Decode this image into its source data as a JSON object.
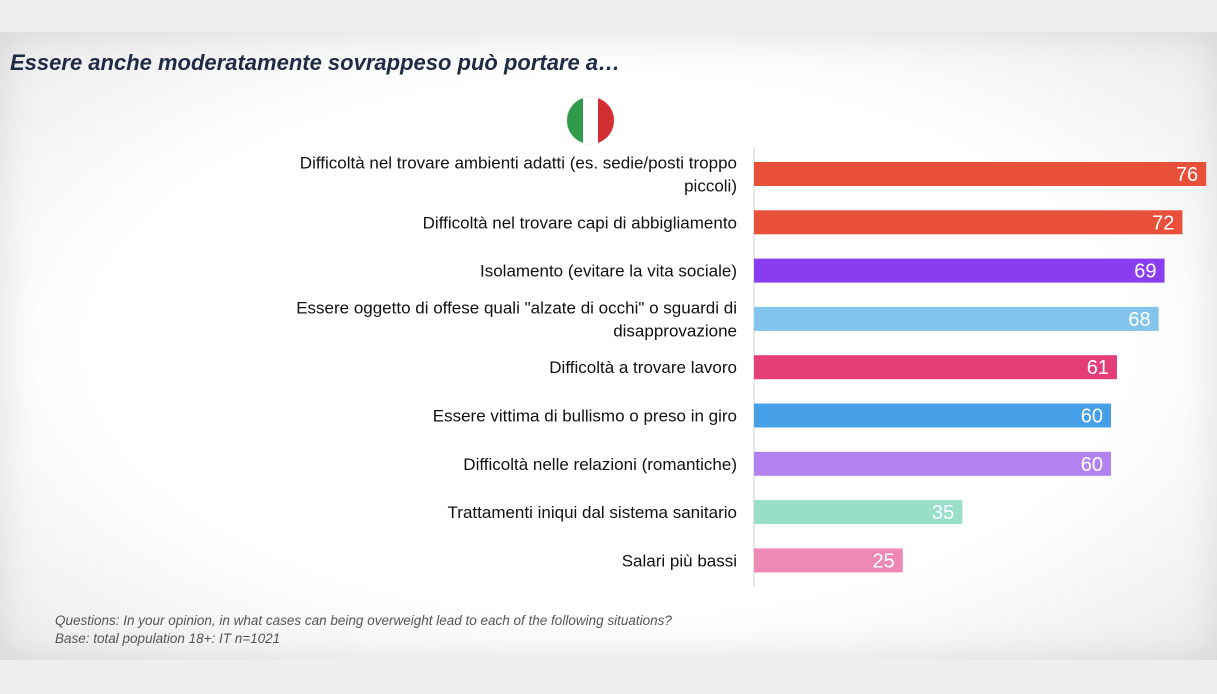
{
  "title": "Essere anche moderatamente sovrappeso può portare a…",
  "flag": {
    "icon": "italian-flag-icon",
    "colors": [
      "#2e9a4a",
      "#ffffff",
      "#d32f33"
    ]
  },
  "chart_data": {
    "type": "bar",
    "orientation": "horizontal",
    "categories": [
      [
        "Difficoltà nel trovare ambienti adatti (es. sedie/posti troppo",
        "piccoli)"
      ],
      [
        "Difficoltà nel trovare capi di abbigliamento"
      ],
      [
        "Isolamento (evitare la vita sociale)"
      ],
      [
        "Essere oggetto di offese quali \"alzate di occhi\" o sguardi di",
        "disapprovazione"
      ],
      [
        "Difficoltà a trovare lavoro"
      ],
      [
        "Essere vittima di bullismo o preso in giro"
      ],
      [
        "Difficoltà nelle relazioni (romantiche)"
      ],
      [
        "Trattamenti iniqui dal sistema sanitario"
      ],
      [
        "Salari più bassi"
      ]
    ],
    "values": [
      76,
      72,
      69,
      68,
      61,
      60,
      60,
      35,
      25
    ],
    "colors": [
      "#e8503a",
      "#e8503a",
      "#8a3cf0",
      "#82c4ec",
      "#e53d78",
      "#45a0e8",
      "#b282f0",
      "#98dec9",
      "#ee88b4"
    ],
    "xlim": [
      0,
      100
    ],
    "data_labels": true,
    "grid": false,
    "legend": "none"
  },
  "footnote": {
    "line1": "Questions: In your opinion, in what cases can being overweight lead to each of the following situations?",
    "line2": "Base: total population 18+: IT n=1021"
  }
}
